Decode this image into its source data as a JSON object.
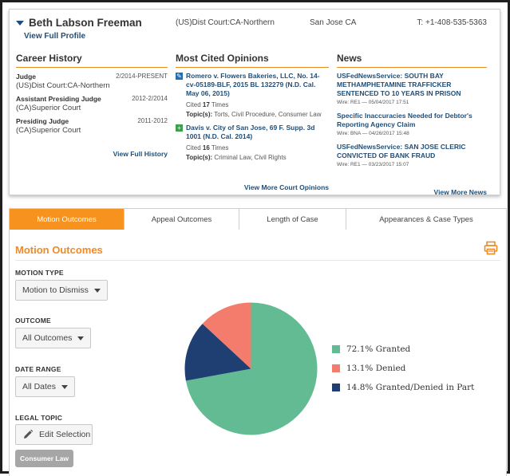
{
  "profile": {
    "name": "Beth Labson Freeman",
    "view_full_profile": "View Full Profile",
    "court": "(US)Dist Court:CA-Northern",
    "city": "San Jose CA",
    "phone": "T: +1-408-535-5363"
  },
  "career": {
    "title": "Career History",
    "items": [
      {
        "role": "Judge",
        "date": "2/2014-PRESENT",
        "court": "(US)Dist Court:CA-Northern"
      },
      {
        "role": "Assistant Presiding Judge",
        "date": "2012-2/2014",
        "court": "(CA)Superior Court"
      },
      {
        "role": "Presiding Judge",
        "date": "2011-2012",
        "court": "(CA)Superior Court"
      }
    ],
    "view_all": "View Full History"
  },
  "opinions": {
    "title": "Most Cited Opinions",
    "items": [
      {
        "title": "Romero v. Flowers Bakeries, LLC, No. 14-cv-05189-BLF, 2015 BL 132279 (N.D. Cal. May 06, 2015)",
        "cited_prefix": "Cited",
        "cited_count": "17",
        "cited_suffix": "Times",
        "topics_label": "Topic(s):",
        "topics": "Torts, Civil Procedure, Consumer Law",
        "icon": "edit-icon"
      },
      {
        "title": "Davis v. City of San Jose, 69 F. Supp. 3d 1001 (N.D. Cal. 2014)",
        "cited_prefix": "Cited",
        "cited_count": "16",
        "cited_suffix": "Times",
        "topics_label": "Topic(s):",
        "topics": "Criminal Law, Civil Rights",
        "icon": "plus-icon"
      }
    ],
    "view_all": "View More Court Opinions"
  },
  "news": {
    "title": "News",
    "items": [
      {
        "title": "USFedNewsService: SOUTH BAY METHAMPHETAMINE TRAFFICKER SENTENCED TO 10 YEARS IN PRISON",
        "meta": "Wire: RE1 — 05/04/2017 17:51"
      },
      {
        "title": "Specific Inaccuracies Needed for Debtor's Reporting Agency Claim",
        "meta": "Wire: BNA — 04/26/2017 15:48"
      },
      {
        "title": "USFedNewsService: SAN JOSE CLERIC CONVICTED OF BANK FRAUD",
        "meta": "Wire: RE1 — 03/23/2017 15:07"
      }
    ],
    "view_all": "View More News"
  },
  "tabs": [
    "Motion Outcomes",
    "Appeal Outcomes",
    "Length of Case",
    "Appearances & Case Types"
  ],
  "motion": {
    "title": "Motion Outcomes",
    "print_icon": "printer-icon",
    "motion_type_label": "MOTION TYPE",
    "motion_type_value": "Motion to Dismiss",
    "outcome_label": "OUTCOME",
    "outcome_value": "All Outcomes",
    "date_range_label": "DATE RANGE",
    "date_range_value": "All Dates",
    "legal_topic_label": "LEGAL TOPIC",
    "edit_selection": "Edit Selection",
    "topic_tag": "Consumer Law"
  },
  "chart_data": {
    "type": "pie",
    "slices": [
      {
        "label": "72.1% Granted",
        "value": 72.1,
        "color": "#62bb93"
      },
      {
        "label": "13.1% Denied",
        "value": 13.1,
        "color": "#f47c6c"
      },
      {
        "label": "14.8% Granted/Denied in Part",
        "value": 14.8,
        "color": "#1f3f73"
      }
    ],
    "legend_position": "right"
  }
}
